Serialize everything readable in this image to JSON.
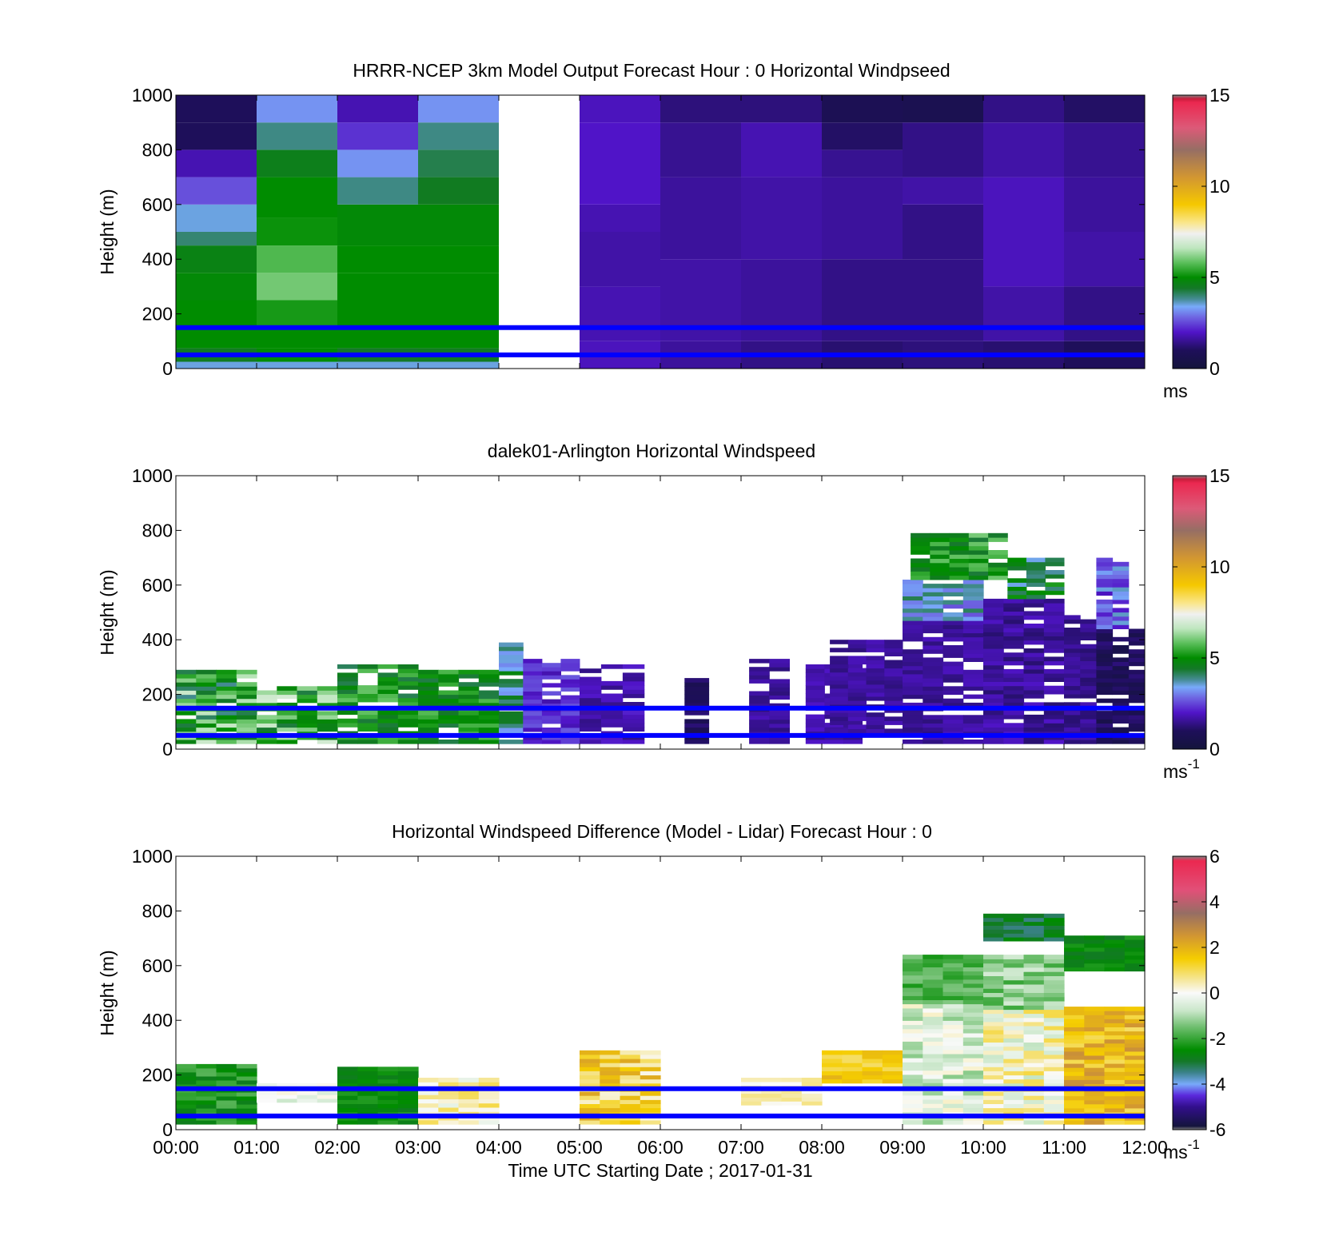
{
  "chart_data": [
    {
      "type": "heatmap",
      "id": "model",
      "title": "HRRR-NCEP 3km Model Output   Forecast Hour : 0 Horizontal Windpseed",
      "ylabel": "Height (m)",
      "xlabel": "",
      "ylim": [
        0,
        1000
      ],
      "yticks": [
        0,
        200,
        400,
        600,
        800,
        1000
      ],
      "xlim_hours": [
        0,
        12
      ],
      "colorbar": {
        "min": 0,
        "max": 15,
        "ticks": [
          0,
          5,
          10,
          15
        ],
        "unit": "ms",
        "unit_sup": ""
      },
      "lines_m": [
        50,
        150
      ],
      "line_color": "#0000ff",
      "columns": [
        {
          "t0": 0,
          "t1": 1,
          "levels": [
            {
              "z0": 0,
              "z1": 25,
              "v": 3.5
            },
            {
              "z0": 25,
              "z1": 75,
              "v": 4.5
            },
            {
              "z0": 75,
              "z1": 150,
              "v": 5.0
            },
            {
              "z0": 150,
              "z1": 250,
              "v": 5.0
            },
            {
              "z0": 250,
              "z1": 350,
              "v": 4.9
            },
            {
              "z0": 350,
              "z1": 450,
              "v": 4.7
            },
            {
              "z0": 450,
              "z1": 500,
              "v": 4.0
            },
            {
              "z0": 500,
              "z1": 600,
              "v": 3.5
            },
            {
              "z0": 600,
              "z1": 700,
              "v": 2.6
            },
            {
              "z0": 700,
              "z1": 800,
              "v": 1.8
            },
            {
              "z0": 800,
              "z1": 900,
              "v": 1.0
            },
            {
              "z0": 900,
              "z1": 1000,
              "v": 1.0
            }
          ]
        },
        {
          "t0": 1,
          "t1": 2,
          "levels": [
            {
              "z0": 0,
              "z1": 25,
              "v": 3.5
            },
            {
              "z0": 25,
              "z1": 75,
              "v": 5.0
            },
            {
              "z0": 75,
              "z1": 150,
              "v": 5.0
            },
            {
              "z0": 150,
              "z1": 250,
              "v": 5.2
            },
            {
              "z0": 250,
              "z1": 350,
              "v": 6.0
            },
            {
              "z0": 350,
              "z1": 450,
              "v": 5.7
            },
            {
              "z0": 450,
              "z1": 550,
              "v": 5.1
            },
            {
              "z0": 550,
              "z1": 700,
              "v": 5.0
            },
            {
              "z0": 700,
              "z1": 800,
              "v": 4.6
            },
            {
              "z0": 800,
              "z1": 900,
              "v": 3.9
            },
            {
              "z0": 900,
              "z1": 1000,
              "v": 3.2
            }
          ]
        },
        {
          "t0": 2,
          "t1": 3,
          "levels": [
            {
              "z0": 0,
              "z1": 25,
              "v": 3.5
            },
            {
              "z0": 25,
              "z1": 75,
              "v": 4.4
            },
            {
              "z0": 75,
              "z1": 150,
              "v": 5.0
            },
            {
              "z0": 150,
              "z1": 250,
              "v": 5.0
            },
            {
              "z0": 250,
              "z1": 350,
              "v": 5.0
            },
            {
              "z0": 350,
              "z1": 450,
              "v": 5.0
            },
            {
              "z0": 450,
              "z1": 600,
              "v": 4.9
            },
            {
              "z0": 600,
              "z1": 700,
              "v": 3.9
            },
            {
              "z0": 700,
              "z1": 800,
              "v": 3.2
            },
            {
              "z0": 800,
              "z1": 900,
              "v": 2.3
            },
            {
              "z0": 900,
              "z1": 1000,
              "v": 1.8
            }
          ]
        },
        {
          "t0": 3,
          "t1": 4,
          "levels": [
            {
              "z0": 0,
              "z1": 25,
              "v": 3.5
            },
            {
              "z0": 25,
              "z1": 75,
              "v": 4.5
            },
            {
              "z0": 75,
              "z1": 150,
              "v": 5.0
            },
            {
              "z0": 150,
              "z1": 250,
              "v": 5.0
            },
            {
              "z0": 250,
              "z1": 350,
              "v": 5.0
            },
            {
              "z0": 350,
              "z1": 450,
              "v": 5.0
            },
            {
              "z0": 450,
              "z1": 600,
              "v": 4.9
            },
            {
              "z0": 600,
              "z1": 700,
              "v": 4.5
            },
            {
              "z0": 700,
              "z1": 800,
              "v": 4.2
            },
            {
              "z0": 800,
              "z1": 900,
              "v": 3.9
            },
            {
              "z0": 900,
              "z1": 1000,
              "v": 3.2
            }
          ]
        },
        {
          "t0": 5,
          "t1": 6,
          "levels": [
            {
              "z0": 0,
              "z1": 100,
              "v": 1.9
            },
            {
              "z0": 100,
              "z1": 300,
              "v": 1.8
            },
            {
              "z0": 300,
              "z1": 500,
              "v": 1.7
            },
            {
              "z0": 500,
              "z1": 600,
              "v": 1.8
            },
            {
              "z0": 600,
              "z1": 900,
              "v": 2.0
            },
            {
              "z0": 900,
              "z1": 1000,
              "v": 1.9
            }
          ]
        },
        {
          "t0": 6,
          "t1": 7,
          "levels": [
            {
              "z0": 0,
              "z1": 100,
              "v": 1.6
            },
            {
              "z0": 100,
              "z1": 400,
              "v": 1.7
            },
            {
              "z0": 400,
              "z1": 700,
              "v": 1.6
            },
            {
              "z0": 700,
              "z1": 900,
              "v": 1.5
            },
            {
              "z0": 900,
              "z1": 1000,
              "v": 1.3
            }
          ]
        },
        {
          "t0": 7,
          "t1": 8,
          "levels": [
            {
              "z0": 0,
              "z1": 100,
              "v": 1.4
            },
            {
              "z0": 100,
              "z1": 400,
              "v": 1.6
            },
            {
              "z0": 400,
              "z1": 700,
              "v": 1.7
            },
            {
              "z0": 700,
              "z1": 900,
              "v": 1.8
            },
            {
              "z0": 900,
              "z1": 1000,
              "v": 1.3
            }
          ]
        },
        {
          "t0": 8,
          "t1": 9,
          "levels": [
            {
              "z0": 0,
              "z1": 100,
              "v": 1.2
            },
            {
              "z0": 100,
              "z1": 400,
              "v": 1.4
            },
            {
              "z0": 400,
              "z1": 700,
              "v": 1.6
            },
            {
              "z0": 700,
              "z1": 800,
              "v": 1.5
            },
            {
              "z0": 800,
              "z1": 900,
              "v": 1.1
            },
            {
              "z0": 900,
              "z1": 1000,
              "v": 0.8
            }
          ]
        },
        {
          "t0": 9,
          "t1": 10,
          "levels": [
            {
              "z0": 0,
              "z1": 100,
              "v": 1.3
            },
            {
              "z0": 100,
              "z1": 400,
              "v": 1.4
            },
            {
              "z0": 400,
              "z1": 600,
              "v": 1.4
            },
            {
              "z0": 600,
              "z1": 700,
              "v": 1.7
            },
            {
              "z0": 700,
              "z1": 900,
              "v": 1.4
            },
            {
              "z0": 900,
              "z1": 1000,
              "v": 0.7
            }
          ]
        },
        {
          "t0": 10,
          "t1": 11,
          "levels": [
            {
              "z0": 0,
              "z1": 100,
              "v": 1.2
            },
            {
              "z0": 100,
              "z1": 300,
              "v": 1.7
            },
            {
              "z0": 300,
              "z1": 500,
              "v": 1.9
            },
            {
              "z0": 500,
              "z1": 700,
              "v": 1.9
            },
            {
              "z0": 700,
              "z1": 900,
              "v": 1.7
            },
            {
              "z0": 900,
              "z1": 1000,
              "v": 1.4
            }
          ]
        },
        {
          "t0": 11,
          "t1": 12,
          "levels": [
            {
              "z0": 0,
              "z1": 100,
              "v": 1.0
            },
            {
              "z0": 100,
              "z1": 300,
              "v": 1.4
            },
            {
              "z0": 300,
              "z1": 500,
              "v": 1.7
            },
            {
              "z0": 500,
              "z1": 700,
              "v": 1.6
            },
            {
              "z0": 700,
              "z1": 900,
              "v": 1.5
            },
            {
              "z0": 900,
              "z1": 1000,
              "v": 1.1
            }
          ]
        }
      ]
    },
    {
      "type": "heatmap",
      "id": "lidar",
      "title": "dalek01-Arlington  Horizontal Windspeed",
      "ylabel": "Height (m)",
      "xlabel": "",
      "ylim": [
        0,
        1000
      ],
      "yticks": [
        0,
        200,
        400,
        600,
        800,
        1000
      ],
      "xlim_hours": [
        0,
        12
      ],
      "colorbar": {
        "min": 0,
        "max": 15,
        "ticks": [
          0,
          5,
          10,
          15
        ],
        "unit": "ms",
        "unit_sup": "-1"
      },
      "lines_m": [
        50,
        150
      ],
      "line_color": "#0000ff",
      "bands": [
        {
          "t0": 0,
          "t1": 1,
          "z0": 20,
          "z1": 290,
          "v": 5.3,
          "var": 1.5
        },
        {
          "t0": 1,
          "t1": 2,
          "z0": 20,
          "z1": 230,
          "v": 5.5,
          "var": 1.5
        },
        {
          "t0": 2,
          "t1": 3,
          "z0": 20,
          "z1": 310,
          "v": 5.0,
          "var": 0.9
        },
        {
          "t0": 3,
          "t1": 4,
          "z0": 20,
          "z1": 290,
          "v": 5.0,
          "var": 0.8
        },
        {
          "t0": 4,
          "t1": 4.3,
          "z0": 20,
          "z1": 390,
          "v": 3.8,
          "var": 1.0
        },
        {
          "t0": 4.3,
          "t1": 5,
          "z0": 20,
          "z1": 330,
          "v": 2.2,
          "var": 0.5
        },
        {
          "t0": 5,
          "t1": 5.8,
          "z0": 20,
          "z1": 310,
          "v": 1.8,
          "var": 0.4
        },
        {
          "t0": 6.3,
          "t1": 6.6,
          "z0": 20,
          "z1": 260,
          "v": 1.0,
          "var": 0.3
        },
        {
          "t0": 7.1,
          "t1": 7.6,
          "z0": 20,
          "z1": 330,
          "v": 1.6,
          "var": 0.3
        },
        {
          "t0": 7.8,
          "t1": 8.5,
          "z0": 20,
          "z1": 310,
          "v": 1.7,
          "var": 0.3
        },
        {
          "t0": 8.1,
          "t1": 9,
          "z0": 60,
          "z1": 400,
          "v": 1.6,
          "var": 0.3
        },
        {
          "t0": 9,
          "t1": 10,
          "z0": 20,
          "z1": 470,
          "v": 1.6,
          "var": 0.3
        },
        {
          "t0": 9,
          "t1": 10,
          "z0": 470,
          "z1": 620,
          "v": 3.4,
          "var": 0.8
        },
        {
          "t0": 9.1,
          "t1": 10.3,
          "z0": 620,
          "z1": 790,
          "v": 5.2,
          "var": 0.9
        },
        {
          "t0": 10,
          "t1": 11,
          "z0": 20,
          "z1": 550,
          "v": 1.6,
          "var": 0.4
        },
        {
          "t0": 10.3,
          "t1": 11,
          "z0": 550,
          "z1": 700,
          "v": 4.3,
          "var": 1.0
        },
        {
          "t0": 11,
          "t1": 11.4,
          "z0": 20,
          "z1": 490,
          "v": 1.5,
          "var": 0.3
        },
        {
          "t0": 11.4,
          "t1": 12,
          "z0": 20,
          "z1": 440,
          "v": 0.9,
          "var": 0.4
        },
        {
          "t0": 11.4,
          "t1": 11.8,
          "z0": 440,
          "z1": 700,
          "v": 2.8,
          "var": 0.9
        }
      ]
    },
    {
      "type": "heatmap",
      "id": "diff",
      "title": "Horizontal Windspeed Difference (Model - Lidar) Forecast Hour : 0",
      "ylabel": "Height (m)",
      "xlabel": "Time UTC  Starting Date ; 2017-01-31",
      "ylim": [
        0,
        1000
      ],
      "yticks": [
        0,
        200,
        400,
        600,
        800,
        1000
      ],
      "xlim_hours": [
        0,
        12
      ],
      "xticks": [
        "00:00",
        "01:00",
        "02:00",
        "03:00",
        "04:00",
        "05:00",
        "06:00",
        "07:00",
        "08:00",
        "09:00",
        "10:00",
        "11:00",
        "12:00"
      ],
      "colorbar": {
        "min": -6,
        "max": 6,
        "ticks": [
          -6,
          -4,
          -2,
          0,
          2,
          4,
          6
        ],
        "unit": "ms",
        "unit_sup": "-1"
      },
      "lines_m": [
        50,
        150
      ],
      "line_color": "#0000ff",
      "bands": [
        {
          "t0": 0,
          "t1": 1,
          "z0": 20,
          "z1": 240,
          "v": -2.3,
          "var": 0.6
        },
        {
          "t0": 1,
          "t1": 2,
          "z0": 100,
          "z1": 170,
          "v": -0.3,
          "var": 0.5
        },
        {
          "t0": 2,
          "t1": 3,
          "z0": 20,
          "z1": 230,
          "v": -2.5,
          "var": 0.4
        },
        {
          "t0": 3,
          "t1": 4,
          "z0": 20,
          "z1": 190,
          "v": 0.3,
          "var": 0.8
        },
        {
          "t0": 5,
          "t1": 6,
          "z0": 20,
          "z1": 290,
          "v": 1.2,
          "var": 1.1
        },
        {
          "t0": 7,
          "t1": 8,
          "z0": 90,
          "z1": 190,
          "v": 0.3,
          "var": 0.4
        },
        {
          "t0": 8,
          "t1": 9,
          "z0": 170,
          "z1": 290,
          "v": 1.5,
          "var": 0.6
        },
        {
          "t0": 9,
          "t1": 10,
          "z0": 20,
          "z1": 460,
          "v": -0.5,
          "var": 0.8
        },
        {
          "t0": 9,
          "t1": 10,
          "z0": 460,
          "z1": 640,
          "v": -1.8,
          "var": 0.5
        },
        {
          "t0": 10,
          "t1": 11,
          "z0": 20,
          "z1": 440,
          "v": 0.1,
          "var": 1.0
        },
        {
          "t0": 10,
          "t1": 11,
          "z0": 440,
          "z1": 640,
          "v": -1.3,
          "var": 0.7
        },
        {
          "t0": 10,
          "t1": 11,
          "z0": 690,
          "z1": 790,
          "v": -3.0,
          "var": 0.5
        },
        {
          "t0": 11,
          "t1": 12,
          "z0": 20,
          "z1": 450,
          "v": 1.8,
          "var": 0.9
        },
        {
          "t0": 11,
          "t1": 12,
          "z0": 580,
          "z1": 710,
          "v": -2.6,
          "var": 0.4
        }
      ]
    }
  ]
}
